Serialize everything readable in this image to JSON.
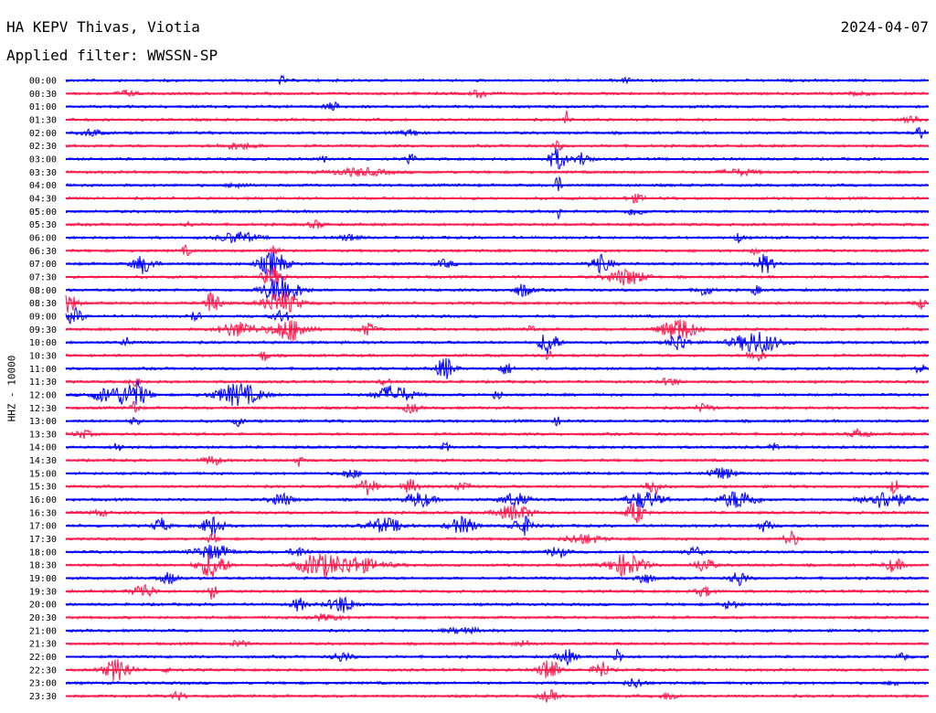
{
  "header": {
    "station": "HA KEPV Thivas, Viotia",
    "date": "2024-04-07",
    "filter": "Applied filter: WWSSN-SP"
  },
  "chart_data": {
    "type": "line",
    "title": "HA KEPV Thivas, Viotia",
    "ylabel": "HHZ - 10000",
    "colors": [
      "#0000ff",
      "#ff1a4d"
    ],
    "rows": [
      {
        "label": "00:00",
        "events": [
          {
            "t": 0.25,
            "a": 5,
            "w": 0.004
          },
          {
            "t": 0.65,
            "a": 4,
            "w": 0.004
          }
        ]
      },
      {
        "label": "00:30",
        "events": [
          {
            "t": 0.07,
            "a": 3,
            "w": 0.01
          },
          {
            "t": 0.48,
            "a": 4,
            "w": 0.01
          },
          {
            "t": 0.92,
            "a": 3,
            "w": 0.01
          }
        ]
      },
      {
        "label": "01:00",
        "events": [
          {
            "t": 0.31,
            "a": 4,
            "w": 0.01
          }
        ]
      },
      {
        "label": "01:30",
        "events": [
          {
            "t": 0.58,
            "a": 10,
            "w": 0.003
          },
          {
            "t": 0.98,
            "a": 5,
            "w": 0.01
          }
        ]
      },
      {
        "label": "02:00",
        "events": [
          {
            "t": 0.03,
            "a": 4,
            "w": 0.01
          },
          {
            "t": 0.4,
            "a": 3,
            "w": 0.01
          },
          {
            "t": 0.99,
            "a": 7,
            "w": 0.005
          }
        ]
      },
      {
        "label": "02:30",
        "events": [
          {
            "t": 0.2,
            "a": 3,
            "w": 0.02
          },
          {
            "t": 0.57,
            "a": 5,
            "w": 0.005
          }
        ]
      },
      {
        "label": "03:00",
        "events": [
          {
            "t": 0.4,
            "a": 5,
            "w": 0.005
          },
          {
            "t": 0.57,
            "a": 12,
            "w": 0.01
          },
          {
            "t": 0.6,
            "a": 8,
            "w": 0.008
          },
          {
            "t": 0.3,
            "a": 3,
            "w": 0.005
          }
        ]
      },
      {
        "label": "03:30",
        "events": [
          {
            "t": 0.34,
            "a": 4,
            "w": 0.03
          },
          {
            "t": 0.78,
            "a": 3,
            "w": 0.02
          }
        ]
      },
      {
        "label": "04:00",
        "events": [
          {
            "t": 0.57,
            "a": 10,
            "w": 0.004
          },
          {
            "t": 0.2,
            "a": 3,
            "w": 0.01
          }
        ]
      },
      {
        "label": "04:30",
        "events": [
          {
            "t": 0.66,
            "a": 4,
            "w": 0.01
          }
        ]
      },
      {
        "label": "05:00",
        "events": [
          {
            "t": 0.57,
            "a": 9,
            "w": 0.003
          },
          {
            "t": 0.66,
            "a": 4,
            "w": 0.01
          }
        ]
      },
      {
        "label": "05:30",
        "events": [
          {
            "t": 0.14,
            "a": 3,
            "w": 0.005
          },
          {
            "t": 0.29,
            "a": 4,
            "w": 0.008
          }
        ]
      },
      {
        "label": "06:00",
        "events": [
          {
            "t": 0.2,
            "a": 6,
            "w": 0.02
          },
          {
            "t": 0.33,
            "a": 4,
            "w": 0.01
          },
          {
            "t": 0.78,
            "a": 5,
            "w": 0.005
          }
        ]
      },
      {
        "label": "06:30",
        "events": [
          {
            "t": 0.14,
            "a": 5,
            "w": 0.005
          },
          {
            "t": 0.24,
            "a": 7,
            "w": 0.006
          },
          {
            "t": 0.8,
            "a": 4,
            "w": 0.005
          }
        ]
      },
      {
        "label": "07:00",
        "events": [
          {
            "t": 0.09,
            "a": 10,
            "w": 0.012
          },
          {
            "t": 0.24,
            "a": 14,
            "w": 0.015
          },
          {
            "t": 0.44,
            "a": 4,
            "w": 0.01
          },
          {
            "t": 0.62,
            "a": 9,
            "w": 0.012
          },
          {
            "t": 0.81,
            "a": 10,
            "w": 0.01
          }
        ]
      },
      {
        "label": "07:30",
        "events": [
          {
            "t": 0.24,
            "a": 10,
            "w": 0.012
          },
          {
            "t": 0.65,
            "a": 9,
            "w": 0.02
          }
        ]
      },
      {
        "label": "08:00",
        "events": [
          {
            "t": 0.25,
            "a": 16,
            "w": 0.02
          },
          {
            "t": 0.53,
            "a": 7,
            "w": 0.01
          },
          {
            "t": 0.74,
            "a": 6,
            "w": 0.008
          },
          {
            "t": 0.8,
            "a": 5,
            "w": 0.005
          }
        ]
      },
      {
        "label": "08:30",
        "events": [
          {
            "t": 0.003,
            "a": 10,
            "w": 0.01
          },
          {
            "t": 0.17,
            "a": 14,
            "w": 0.008
          },
          {
            "t": 0.25,
            "a": 12,
            "w": 0.02
          },
          {
            "t": 0.99,
            "a": 6,
            "w": 0.005
          }
        ]
      },
      {
        "label": "09:00",
        "events": [
          {
            "t": 0.01,
            "a": 8,
            "w": 0.01
          },
          {
            "t": 0.15,
            "a": 6,
            "w": 0.005
          },
          {
            "t": 0.25,
            "a": 6,
            "w": 0.01
          }
        ]
      },
      {
        "label": "09:30",
        "events": [
          {
            "t": 0.2,
            "a": 8,
            "w": 0.02
          },
          {
            "t": 0.26,
            "a": 12,
            "w": 0.02
          },
          {
            "t": 0.35,
            "a": 6,
            "w": 0.01
          },
          {
            "t": 0.71,
            "a": 12,
            "w": 0.02
          },
          {
            "t": 0.54,
            "a": 4,
            "w": 0.005
          }
        ]
      },
      {
        "label": "10:00",
        "events": [
          {
            "t": 0.07,
            "a": 5,
            "w": 0.005
          },
          {
            "t": 0.56,
            "a": 14,
            "w": 0.01
          },
          {
            "t": 0.71,
            "a": 10,
            "w": 0.01
          },
          {
            "t": 0.8,
            "a": 12,
            "w": 0.025
          }
        ]
      },
      {
        "label": "10:30",
        "events": [
          {
            "t": 0.23,
            "a": 6,
            "w": 0.005
          },
          {
            "t": 0.56,
            "a": 5,
            "w": 0.005
          },
          {
            "t": 0.8,
            "a": 6,
            "w": 0.01
          }
        ]
      },
      {
        "label": "11:00",
        "events": [
          {
            "t": 0.44,
            "a": 12,
            "w": 0.01
          },
          {
            "t": 0.51,
            "a": 6,
            "w": 0.008
          },
          {
            "t": 0.99,
            "a": 5,
            "w": 0.005
          }
        ]
      },
      {
        "label": "11:30",
        "events": [
          {
            "t": 0.08,
            "a": 6,
            "w": 0.005
          },
          {
            "t": 0.37,
            "a": 4,
            "w": 0.005
          },
          {
            "t": 0.7,
            "a": 4,
            "w": 0.01
          }
        ]
      },
      {
        "label": "12:00",
        "events": [
          {
            "t": 0.05,
            "a": 8,
            "w": 0.02
          },
          {
            "t": 0.08,
            "a": 14,
            "w": 0.015
          },
          {
            "t": 0.2,
            "a": 12,
            "w": 0.025
          },
          {
            "t": 0.38,
            "a": 10,
            "w": 0.02
          },
          {
            "t": 0.5,
            "a": 5,
            "w": 0.005
          }
        ]
      },
      {
        "label": "12:30",
        "events": [
          {
            "t": 0.08,
            "a": 10,
            "w": 0.004
          },
          {
            "t": 0.4,
            "a": 5,
            "w": 0.008
          },
          {
            "t": 0.74,
            "a": 4,
            "w": 0.01
          }
        ]
      },
      {
        "label": "13:00",
        "events": [
          {
            "t": 0.08,
            "a": 8,
            "w": 0.004
          },
          {
            "t": 0.2,
            "a": 5,
            "w": 0.005
          },
          {
            "t": 0.57,
            "a": 4,
            "w": 0.005
          }
        ]
      },
      {
        "label": "13:30",
        "events": [
          {
            "t": 0.02,
            "a": 4,
            "w": 0.01
          },
          {
            "t": 0.92,
            "a": 5,
            "w": 0.01
          }
        ]
      },
      {
        "label": "14:00",
        "events": [
          {
            "t": 0.06,
            "a": 6,
            "w": 0.005
          },
          {
            "t": 0.44,
            "a": 5,
            "w": 0.004
          },
          {
            "t": 0.82,
            "a": 6,
            "w": 0.004
          }
        ]
      },
      {
        "label": "14:30",
        "events": [
          {
            "t": 0.17,
            "a": 5,
            "w": 0.01
          },
          {
            "t": 0.27,
            "a": 6,
            "w": 0.004
          }
        ]
      },
      {
        "label": "15:00",
        "events": [
          {
            "t": 0.33,
            "a": 5,
            "w": 0.01
          },
          {
            "t": 0.76,
            "a": 6,
            "w": 0.015
          }
        ]
      },
      {
        "label": "15:30",
        "events": [
          {
            "t": 0.35,
            "a": 9,
            "w": 0.01
          },
          {
            "t": 0.4,
            "a": 7,
            "w": 0.01
          },
          {
            "t": 0.46,
            "a": 5,
            "w": 0.01
          },
          {
            "t": 0.68,
            "a": 10,
            "w": 0.008
          },
          {
            "t": 0.96,
            "a": 8,
            "w": 0.005
          }
        ]
      },
      {
        "label": "16:00",
        "events": [
          {
            "t": 0.25,
            "a": 7,
            "w": 0.012
          },
          {
            "t": 0.41,
            "a": 8,
            "w": 0.015
          },
          {
            "t": 0.52,
            "a": 7,
            "w": 0.015
          },
          {
            "t": 0.67,
            "a": 9,
            "w": 0.02
          },
          {
            "t": 0.78,
            "a": 10,
            "w": 0.02
          },
          {
            "t": 0.95,
            "a": 9,
            "w": 0.025
          }
        ]
      },
      {
        "label": "16:30",
        "events": [
          {
            "t": 0.52,
            "a": 8,
            "w": 0.02
          },
          {
            "t": 0.66,
            "a": 12,
            "w": 0.01
          },
          {
            "t": 0.04,
            "a": 3,
            "w": 0.01
          }
        ]
      },
      {
        "label": "17:00",
        "events": [
          {
            "t": 0.11,
            "a": 8,
            "w": 0.008
          },
          {
            "t": 0.17,
            "a": 10,
            "w": 0.012
          },
          {
            "t": 0.37,
            "a": 8,
            "w": 0.02
          },
          {
            "t": 0.46,
            "a": 9,
            "w": 0.015
          },
          {
            "t": 0.53,
            "a": 10,
            "w": 0.012
          },
          {
            "t": 0.81,
            "a": 6,
            "w": 0.008
          }
        ]
      },
      {
        "label": "17:30",
        "events": [
          {
            "t": 0.17,
            "a": 6,
            "w": 0.005
          },
          {
            "t": 0.6,
            "a": 5,
            "w": 0.02
          },
          {
            "t": 0.84,
            "a": 8,
            "w": 0.008
          }
        ]
      },
      {
        "label": "18:00",
        "events": [
          {
            "t": 0.17,
            "a": 8,
            "w": 0.02
          },
          {
            "t": 0.27,
            "a": 5,
            "w": 0.01
          },
          {
            "t": 0.57,
            "a": 6,
            "w": 0.01
          },
          {
            "t": 0.73,
            "a": 5,
            "w": 0.01
          }
        ]
      },
      {
        "label": "18:30",
        "events": [
          {
            "t": 0.17,
            "a": 14,
            "w": 0.015
          },
          {
            "t": 0.29,
            "a": 10,
            "w": 0.02
          },
          {
            "t": 0.33,
            "a": 9,
            "w": 0.035
          },
          {
            "t": 0.65,
            "a": 12,
            "w": 0.02
          },
          {
            "t": 0.74,
            "a": 8,
            "w": 0.01
          },
          {
            "t": 0.96,
            "a": 7,
            "w": 0.01
          }
        ]
      },
      {
        "label": "19:00",
        "events": [
          {
            "t": 0.12,
            "a": 6,
            "w": 0.01
          },
          {
            "t": 0.67,
            "a": 6,
            "w": 0.01
          },
          {
            "t": 0.78,
            "a": 9,
            "w": 0.008
          }
        ]
      },
      {
        "label": "19:30",
        "events": [
          {
            "t": 0.09,
            "a": 8,
            "w": 0.012
          },
          {
            "t": 0.17,
            "a": 10,
            "w": 0.004
          },
          {
            "t": 0.74,
            "a": 5,
            "w": 0.01
          }
        ]
      },
      {
        "label": "20:00",
        "events": [
          {
            "t": 0.27,
            "a": 7,
            "w": 0.008
          },
          {
            "t": 0.32,
            "a": 9,
            "w": 0.015
          },
          {
            "t": 0.77,
            "a": 4,
            "w": 0.01
          }
        ]
      },
      {
        "label": "20:30",
        "events": [
          {
            "t": 0.3,
            "a": 3,
            "w": 0.02
          }
        ]
      },
      {
        "label": "21:00",
        "events": [
          {
            "t": 0.46,
            "a": 3,
            "w": 0.02
          }
        ]
      },
      {
        "label": "21:30",
        "events": [
          {
            "t": 0.2,
            "a": 3,
            "w": 0.01
          },
          {
            "t": 0.53,
            "a": 3,
            "w": 0.01
          }
        ]
      },
      {
        "label": "22:00",
        "events": [
          {
            "t": 0.32,
            "a": 5,
            "w": 0.01
          },
          {
            "t": 0.58,
            "a": 8,
            "w": 0.01
          },
          {
            "t": 0.64,
            "a": 9,
            "w": 0.004
          },
          {
            "t": 0.97,
            "a": 5,
            "w": 0.005
          }
        ]
      },
      {
        "label": "22:30",
        "events": [
          {
            "t": 0.06,
            "a": 12,
            "w": 0.015
          },
          {
            "t": 0.56,
            "a": 14,
            "w": 0.01
          },
          {
            "t": 0.62,
            "a": 10,
            "w": 0.008
          },
          {
            "t": 0.12,
            "a": 4,
            "w": 0.005
          }
        ]
      },
      {
        "label": "23:00",
        "events": [
          {
            "t": 0.66,
            "a": 5,
            "w": 0.01
          },
          {
            "t": 0.96,
            "a": 4,
            "w": 0.005
          }
        ]
      },
      {
        "label": "23:30",
        "events": [
          {
            "t": 0.13,
            "a": 4,
            "w": 0.008
          },
          {
            "t": 0.56,
            "a": 6,
            "w": 0.01
          },
          {
            "t": 0.7,
            "a": 4,
            "w": 0.01
          }
        ]
      }
    ]
  }
}
